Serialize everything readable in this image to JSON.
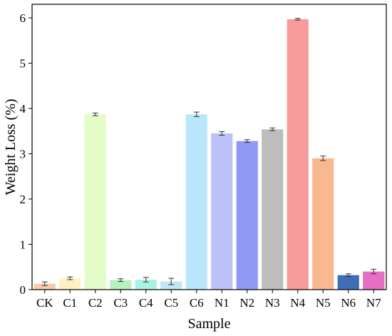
{
  "chart_data": {
    "type": "bar",
    "xlabel": "Sample",
    "ylabel": "Weight Loss (%)",
    "ylim": [
      0,
      6.3
    ],
    "yticks": [
      0,
      1,
      2,
      3,
      4,
      5,
      6
    ],
    "grid": false,
    "categories": [
      "CK",
      "C1",
      "C2",
      "C3",
      "C4",
      "C5",
      "C6",
      "N1",
      "N2",
      "N3",
      "N4",
      "N5",
      "N6",
      "N7"
    ],
    "values": [
      0.13,
      0.25,
      3.87,
      0.21,
      0.22,
      0.18,
      3.87,
      3.45,
      3.28,
      3.54,
      5.97,
      2.9,
      0.32,
      0.4
    ],
    "errors": [
      0.04,
      0.03,
      0.03,
      0.03,
      0.05,
      0.07,
      0.05,
      0.04,
      0.03,
      0.03,
      0.02,
      0.05,
      0.03,
      0.05
    ],
    "colors": [
      "#f9c9b0",
      "#fff2c0",
      "#e3fcc8",
      "#b8f0c0",
      "#aaf3e4",
      "#c0e6f2",
      "#b9e6fb",
      "#bcc1f9",
      "#8f99f5",
      "#bdbdbd",
      "#f79b9b",
      "#f9b890",
      "#3f6db8",
      "#e66fc5"
    ]
  }
}
